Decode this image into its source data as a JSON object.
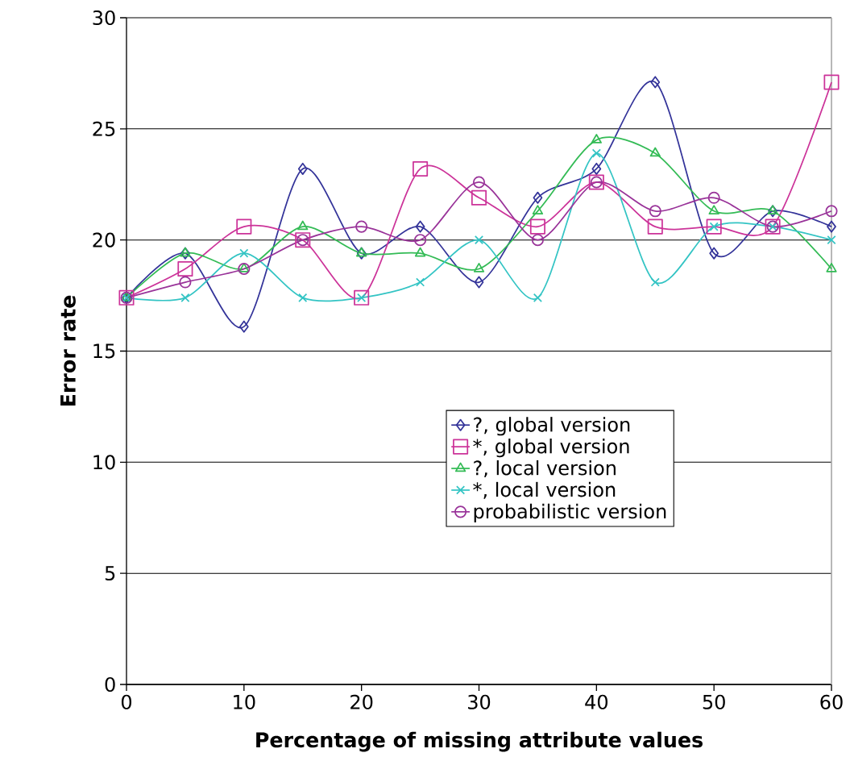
{
  "chart_data": {
    "type": "line",
    "xlabel": "Percentage of missing attribute values",
    "ylabel": "Error rate",
    "x": [
      0,
      5,
      10,
      15,
      20,
      25,
      30,
      35,
      40,
      45,
      50,
      55,
      60
    ],
    "series": [
      {
        "name": "?, global version",
        "color": "#333399",
        "marker": "diamond",
        "values": [
          17.4,
          19.4,
          16.1,
          23.2,
          19.4,
          20.6,
          18.1,
          21.9,
          23.2,
          27.1,
          19.4,
          21.3,
          20.6
        ]
      },
      {
        "name": "*, global version",
        "color": "#cc3399",
        "marker": "square",
        "values": [
          17.4,
          18.7,
          20.6,
          20.0,
          17.4,
          23.2,
          21.9,
          20.6,
          22.6,
          20.6,
          20.6,
          20.6,
          27.1
        ]
      },
      {
        "name": "?, local version",
        "color": "#33bb55",
        "marker": "triangle",
        "values": [
          17.4,
          19.4,
          18.7,
          20.6,
          19.4,
          19.4,
          18.7,
          21.3,
          24.5,
          23.9,
          21.3,
          21.3,
          18.7
        ]
      },
      {
        "name": "*, local version",
        "color": "#33c4c4",
        "marker": "cross",
        "values": [
          17.4,
          17.4,
          19.4,
          17.4,
          17.4,
          18.1,
          20.0,
          17.4,
          23.9,
          18.1,
          20.6,
          20.6,
          20.0
        ]
      },
      {
        "name": "probabilistic version",
        "color": "#993399",
        "marker": "circle",
        "values": [
          17.4,
          18.1,
          18.7,
          20.0,
          20.6,
          20.0,
          22.6,
          20.0,
          22.6,
          21.3,
          21.9,
          20.6,
          21.3
        ]
      }
    ],
    "xlim": [
      0,
      60
    ],
    "xticks": [
      0,
      10,
      20,
      30,
      40,
      50,
      60
    ],
    "ylim": [
      0,
      30
    ],
    "yticks": [
      0,
      5,
      10,
      15,
      20,
      25,
      30
    ],
    "grid": "y",
    "legend": "center",
    "line_style": "solid"
  }
}
